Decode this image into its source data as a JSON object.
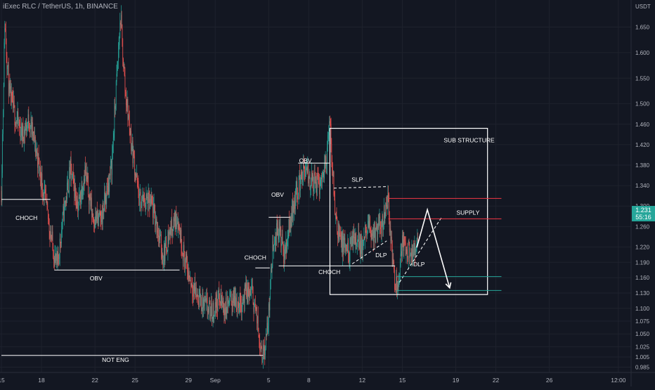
{
  "chart_data": {
    "type": "candlestick",
    "title": "iExec RLC / TetherUS, 1h, BINANCE",
    "currency": "USDT",
    "ylim": [
      0.975,
      1.695
    ],
    "y_ticks": [
      0.985,
      1.005,
      1.025,
      1.05,
      1.075,
      1.1,
      1.13,
      1.16,
      1.19,
      1.22,
      1.26,
      1.3,
      1.34,
      1.38,
      1.42,
      1.46,
      1.5,
      1.55,
      1.6,
      1.65
    ],
    "y_tick_labels": [
      "0.985",
      "1.005",
      "1.025",
      "1.050",
      "1.075",
      "1.100",
      "1.130",
      "1.160",
      "1.190",
      "1.220",
      "1.260",
      "1.300",
      "1.340",
      "1.380",
      "1.420",
      "1.460",
      "1.500",
      "1.550",
      "1.600",
      "1.650"
    ],
    "x_ticks": [
      "15",
      "18",
      "22",
      "25",
      "29",
      "Sep",
      "5",
      "8",
      "12",
      "15",
      "19",
      "22",
      "26",
      "12:00"
    ],
    "x_tick_hours": [
      0,
      72,
      168,
      240,
      336,
      384,
      480,
      552,
      648,
      720,
      816,
      888,
      984,
      1108
    ],
    "last_price": "1.231",
    "last_price_value": 1.231,
    "countdown": "55:16",
    "colors": {
      "up": "#26a69a",
      "down": "#ef5350",
      "bg": "#131722",
      "grid": "#1e222d",
      "annotation": "#ffffff",
      "supply": "#f23645",
      "demand": "#26a69a"
    },
    "price_path": [
      [
        0,
        1.33
      ],
      [
        6,
        1.66
      ],
      [
        14,
        1.52
      ],
      [
        26,
        1.47
      ],
      [
        38,
        1.44
      ],
      [
        50,
        1.47
      ],
      [
        64,
        1.4
      ],
      [
        80,
        1.3
      ],
      [
        94,
        1.21
      ],
      [
        100,
        1.18
      ],
      [
        112,
        1.29
      ],
      [
        124,
        1.37
      ],
      [
        138,
        1.3
      ],
      [
        150,
        1.37
      ],
      [
        164,
        1.28
      ],
      [
        178,
        1.27
      ],
      [
        190,
        1.33
      ],
      [
        198,
        1.38
      ],
      [
        206,
        1.53
      ],
      [
        214,
        1.67
      ],
      [
        222,
        1.53
      ],
      [
        234,
        1.42
      ],
      [
        248,
        1.31
      ],
      [
        260,
        1.31
      ],
      [
        270,
        1.3
      ],
      [
        280,
        1.26
      ],
      [
        290,
        1.2
      ],
      [
        302,
        1.25
      ],
      [
        316,
        1.28
      ],
      [
        328,
        1.2
      ],
      [
        338,
        1.16
      ],
      [
        350,
        1.13
      ],
      [
        360,
        1.11
      ],
      [
        370,
        1.1
      ],
      [
        378,
        1.09
      ],
      [
        390,
        1.12
      ],
      [
        402,
        1.1
      ],
      [
        414,
        1.12
      ],
      [
        428,
        1.11
      ],
      [
        440,
        1.13
      ],
      [
        450,
        1.13
      ],
      [
        456,
        1.1
      ],
      [
        462,
        1.05
      ],
      [
        470,
        1.01
      ],
      [
        478,
        1.06
      ],
      [
        488,
        1.23
      ],
      [
        498,
        1.26
      ],
      [
        508,
        1.2
      ],
      [
        518,
        1.27
      ],
      [
        528,
        1.32
      ],
      [
        542,
        1.37
      ],
      [
        556,
        1.35
      ],
      [
        570,
        1.34
      ],
      [
        582,
        1.38
      ],
      [
        590,
        1.46
      ],
      [
        600,
        1.28
      ],
      [
        612,
        1.22
      ],
      [
        624,
        1.21
      ],
      [
        636,
        1.24
      ],
      [
        648,
        1.22
      ],
      [
        660,
        1.26
      ],
      [
        672,
        1.24
      ],
      [
        684,
        1.27
      ],
      [
        694,
        1.32
      ],
      [
        700,
        1.22
      ],
      [
        708,
        1.15
      ],
      [
        712,
        1.15
      ],
      [
        720,
        1.23
      ],
      [
        730,
        1.21
      ],
      [
        740,
        1.2
      ],
      [
        748,
        1.23
      ]
    ],
    "annotations": {
      "labels": [
        {
          "text": "CHOCH",
          "hour": 45,
          "price": 1.273
        },
        {
          "text": "OBV",
          "hour": 170,
          "price": 1.155
        },
        {
          "text": "NOT ENG",
          "hour": 205,
          "price": 0.995
        },
        {
          "text": "OBV",
          "hour": 496,
          "price": 1.318
        },
        {
          "text": "CHOCH",
          "hour": 456,
          "price": 1.195
        },
        {
          "text": "OBV",
          "hour": 546,
          "price": 1.385
        },
        {
          "text": "SLP",
          "hour": 639,
          "price": 1.348
        },
        {
          "text": "CHOCH",
          "hour": 589,
          "price": 1.167
        },
        {
          "text": "DLP",
          "hour": 682,
          "price": 1.2
        },
        {
          "text": "DLP",
          "hour": 750,
          "price": 1.182
        },
        {
          "text": "SUB STRUCTURE",
          "hour": 840,
          "price": 1.425
        },
        {
          "text": "SUPPLY",
          "hour": 838,
          "price": 1.283
        }
      ],
      "hlines": [
        {
          "from": 0,
          "to": 88,
          "price": 1.313
        },
        {
          "from": 95,
          "to": 320,
          "price": 1.175
        },
        {
          "from": 0,
          "to": 470,
          "price": 1.008
        },
        {
          "from": 480,
          "to": 518,
          "price": 1.278
        },
        {
          "from": 456,
          "to": 482,
          "price": 1.179
        },
        {
          "from": 533,
          "to": 589,
          "price": 1.384
        },
        {
          "from": 498,
          "to": 707,
          "price": 1.183
        }
      ],
      "dashed_lines": [
        {
          "from": [
            597,
            1.335
          ],
          "to": [
            693,
            1.338
          ]
        },
        {
          "from": [
            630,
            1.187
          ],
          "to": [
            692,
            1.232
          ]
        },
        {
          "from": [
            715,
            1.151
          ],
          "to": [
            790,
            1.277
          ]
        }
      ],
      "box": {
        "from": 590,
        "to": 873,
        "top": 1.452,
        "bottom": 1.127
      },
      "supply_lines": [
        {
          "from": 695,
          "to": 898,
          "price": 1.315
        },
        {
          "from": 695,
          "to": 898,
          "price": 1.275
        }
      ],
      "demand_lines": [
        {
          "from": 710,
          "to": 898,
          "price": 1.162
        },
        {
          "from": 710,
          "to": 898,
          "price": 1.135
        }
      ],
      "projection": [
        [
          746,
          1.219
        ],
        [
          765,
          1.293
        ],
        [
          805,
          1.14
        ]
      ]
    }
  }
}
